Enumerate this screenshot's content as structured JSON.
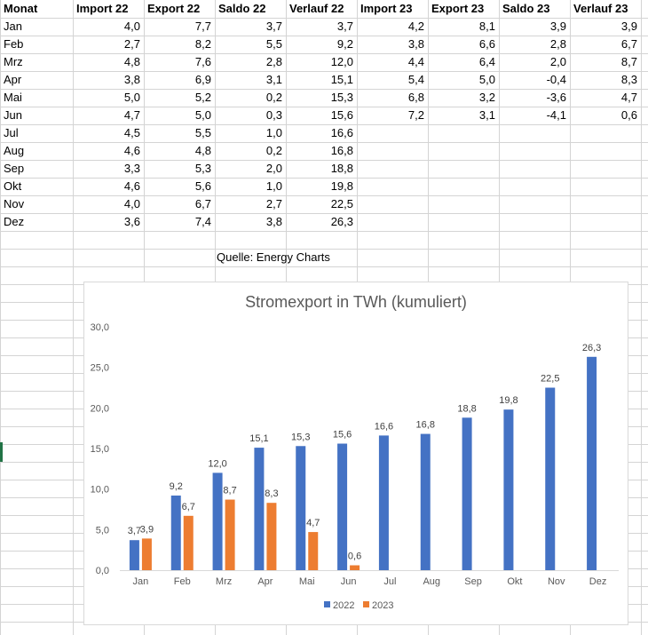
{
  "table": {
    "headers": [
      "Monat",
      "Import 22",
      "Export 22",
      "Saldo 22",
      "Verlauf 22",
      "Import 23",
      "Export 23",
      "Saldo 23",
      "Verlauf 23"
    ],
    "rows": [
      [
        "Jan",
        "4,0",
        "7,7",
        "3,7",
        "3,7",
        "4,2",
        "8,1",
        "3,9",
        "3,9"
      ],
      [
        "Feb",
        "2,7",
        "8,2",
        "5,5",
        "9,2",
        "3,8",
        "6,6",
        "2,8",
        "6,7"
      ],
      [
        "Mrz",
        "4,8",
        "7,6",
        "2,8",
        "12,0",
        "4,4",
        "6,4",
        "2,0",
        "8,7"
      ],
      [
        "Apr",
        "3,8",
        "6,9",
        "3,1",
        "15,1",
        "5,4",
        "5,0",
        "-0,4",
        "8,3"
      ],
      [
        "Mai",
        "5,0",
        "5,2",
        "0,2",
        "15,3",
        "6,8",
        "3,2",
        "-3,6",
        "4,7"
      ],
      [
        "Jun",
        "4,7",
        "5,0",
        "0,3",
        "15,6",
        "7,2",
        "3,1",
        "-4,1",
        "0,6"
      ],
      [
        "Jul",
        "4,5",
        "5,5",
        "1,0",
        "16,6",
        "",
        "",
        "",
        ""
      ],
      [
        "Aug",
        "4,6",
        "4,8",
        "0,2",
        "16,8",
        "",
        "",
        "",
        ""
      ],
      [
        "Sep",
        "3,3",
        "5,3",
        "2,0",
        "18,8",
        "",
        "",
        "",
        ""
      ],
      [
        "Okt",
        "4,6",
        "5,6",
        "1,0",
        "19,8",
        "",
        "",
        "",
        ""
      ],
      [
        "Nov",
        "4,0",
        "6,7",
        "2,7",
        "22,5",
        "",
        "",
        "",
        ""
      ],
      [
        "Dez",
        "3,6",
        "7,4",
        "3,8",
        "26,3",
        "",
        "",
        "",
        ""
      ]
    ],
    "source": "Quelle: Energy Charts"
  },
  "chart_data": {
    "type": "bar",
    "title": "Stromexport in TWh (kumuliert)",
    "categories": [
      "Jan",
      "Feb",
      "Mrz",
      "Apr",
      "Mai",
      "Jun",
      "Jul",
      "Aug",
      "Sep",
      "Okt",
      "Nov",
      "Dez"
    ],
    "series": [
      {
        "name": "2022",
        "color": "#4472c4",
        "values": [
          3.7,
          9.2,
          12.0,
          15.1,
          15.3,
          15.6,
          16.6,
          16.8,
          18.8,
          19.8,
          22.5,
          26.3
        ],
        "labels": [
          "3,7",
          "9,2",
          "12,0",
          "15,1",
          "15,3",
          "15,6",
          "16,6",
          "16,8",
          "18,8",
          "19,8",
          "22,5",
          "26,3"
        ]
      },
      {
        "name": "2023",
        "color": "#ed7d31",
        "values": [
          3.9,
          6.7,
          8.7,
          8.3,
          4.7,
          0.6,
          null,
          null,
          null,
          null,
          null,
          null
        ],
        "labels": [
          "3,9",
          "6,7",
          "8,7",
          "8,3",
          "4,7",
          "0,6",
          "",
          "",
          "",
          "",
          "",
          ""
        ]
      }
    ],
    "ylim": [
      0,
      30
    ],
    "yticks": [
      0,
      5,
      10,
      15,
      20,
      25,
      30
    ],
    "ytick_labels": [
      "0,0",
      "5,0",
      "10,0",
      "15,0",
      "20,0",
      "25,0",
      "30,0"
    ],
    "grid": false,
    "legend": "bottom"
  }
}
